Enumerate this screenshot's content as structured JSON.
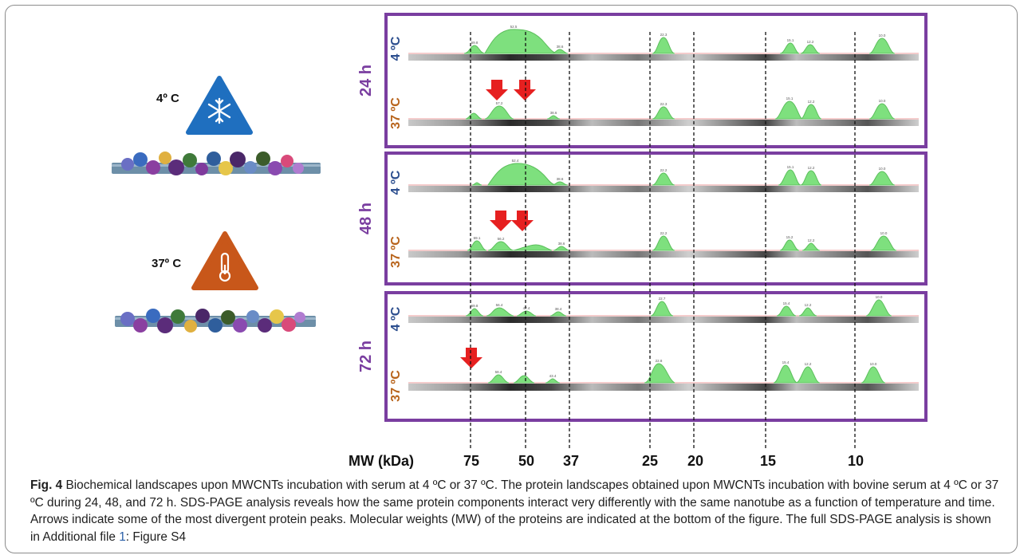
{
  "figure": {
    "left_panel": {
      "cold_label": "4º C",
      "warm_label": "37º C",
      "cold_icon": "snowflake-icon",
      "warm_icon": "thermometer-icon",
      "cold_color": "#1f6fbf",
      "warm_color": "#c8571a"
    },
    "time_labels": [
      "24 h",
      "48 h",
      "72 h"
    ],
    "temp_labels": {
      "cold": "4 ºC",
      "warm": "37 ºC"
    },
    "colors": {
      "box": "#7a3ea0",
      "time_text": "#7a3ea0",
      "cold_text": "#2d4f8f",
      "warm_text": "#b8641c",
      "peak": "#7ee07e",
      "arrow": "#e62020"
    },
    "mw_axis": {
      "label": "MW (kDa)",
      "ticks": [
        "75",
        "50",
        "37",
        "25",
        "20",
        "15",
        "10"
      ]
    },
    "lanes": [
      {
        "time": "24 h",
        "temp": "cold",
        "peaks": [
          "69.8",
          "52.5",
          "38.6",
          "22.3",
          "15.1",
          "12.2",
          "10.0"
        ]
      },
      {
        "time": "24 h",
        "temp": "warm",
        "peaks": [
          "",
          "57.2",
          "38.6",
          "22.3",
          "15.1",
          "12.2",
          "10.0"
        ]
      },
      {
        "time": "48 h",
        "temp": "cold",
        "peaks": [
          "",
          "52.4",
          "38.6",
          "22.2",
          "15.1",
          "12.2",
          "10.0"
        ]
      },
      {
        "time": "48 h",
        "temp": "warm",
        "peaks": [
          "69.1",
          "56.2",
          "38.6",
          "22.2",
          "15.2",
          "12.2",
          "10.0"
        ]
      },
      {
        "time": "72 h",
        "temp": "cold",
        "peaks": [
          "69.8",
          "56.4",
          "47.4",
          "38.4",
          "22.7",
          "15.4",
          "12.2",
          "10.0"
        ]
      },
      {
        "time": "72 h",
        "temp": "warm",
        "peaks": [
          "",
          "58.4",
          "",
          "43.4",
          "22.8",
          "15.4",
          "12.2",
          "10.0"
        ]
      }
    ]
  },
  "caption": {
    "label": "Fig. 4",
    "text_1": " Biochemical landscapes upon MWCNTs incubation with serum at 4 ºC or 37 ºC. The protein landscapes obtained upon MWCNTs incubation with bovine serum at 4 ºC or 37 ºC during 24, 48, and 72 h. SDS-PAGE analysis reveals how the same protein components interact very differently with the same nanotube as a function of temperature and time. Arrows indicate some of the most divergent protein peaks. Molecular weights (MW) of the proteins are indicated at the bottom of the figure. The full SDS-PAGE analysis is shown in Additional file ",
    "file_ref": "1",
    "text_2": ": Figure S4"
  }
}
